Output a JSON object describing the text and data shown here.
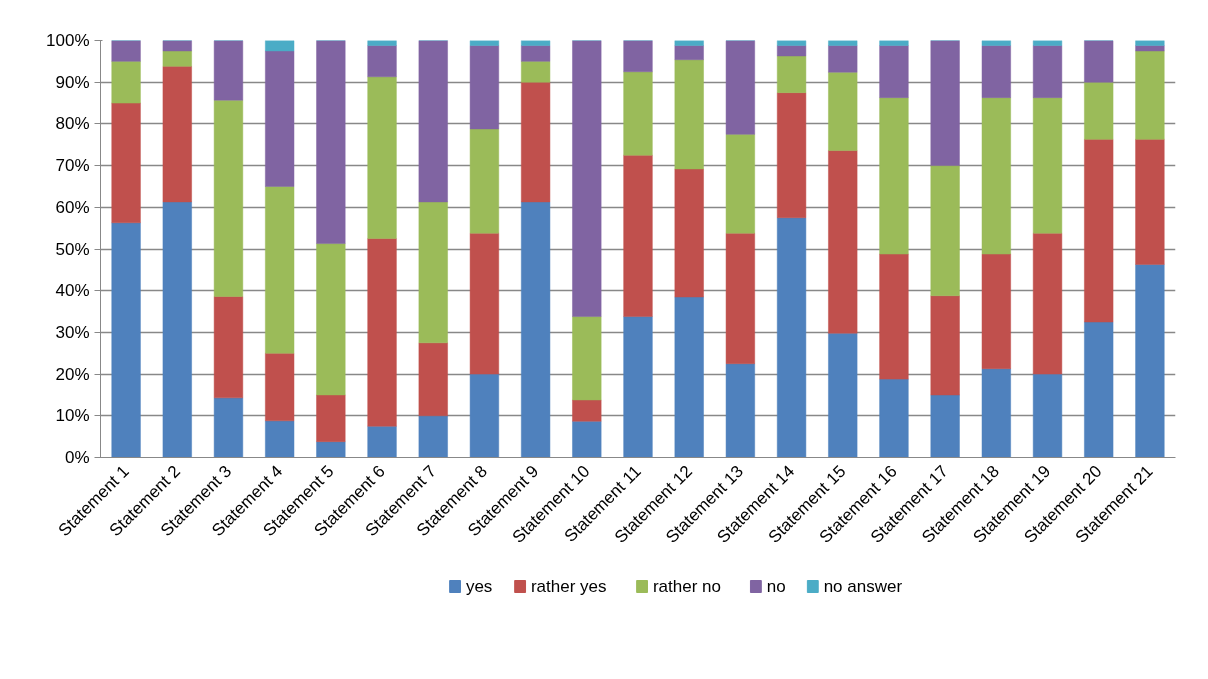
{
  "chart_data": {
    "type": "bar",
    "stacked": true,
    "categories": [
      "Statement 1",
      "Statement 2",
      "Statement 3",
      "Statement 4",
      "Statement 5",
      "Statement 6",
      "Statement 7",
      "Statement 8",
      "Statement 9",
      "Statement 10",
      "Statement 11",
      "Statement 12",
      "Statement 13",
      "Statement 14",
      "Statement 15",
      "Statement 16",
      "Statement 17",
      "Statement 18",
      "Statement 19",
      "Statement 20",
      "Statement 21"
    ],
    "series": [
      {
        "name": "yes",
        "color": "#4f81bd",
        "values": [
          56.3,
          61.3,
          14.3,
          8.8,
          3.8,
          7.5,
          10,
          20,
          61.3,
          8.7,
          33.8,
          38.5,
          22.5,
          57.5,
          29.8,
          18.8,
          15,
          21.3,
          20,
          32.5,
          46.3
        ]
      },
      {
        "name": "rather yes",
        "color": "#c0504d",
        "values": [
          28.7,
          32.5,
          24.3,
          16.2,
          11.2,
          45,
          17.5,
          33.8,
          28.7,
          5.1,
          38.7,
          30.7,
          31.3,
          30,
          43.8,
          30,
          23.8,
          27.5,
          33.8,
          43.8,
          30
        ]
      },
      {
        "name": "rather no",
        "color": "#9bbb59",
        "values": [
          10,
          3.7,
          47.1,
          40,
          36.3,
          38.8,
          33.8,
          25,
          5,
          20,
          20,
          26.2,
          23.7,
          8.8,
          18.8,
          37.5,
          31.2,
          37.5,
          32.5,
          13.7,
          21.2
        ]
      },
      {
        "name": "no",
        "color": "#8064a2",
        "values": [
          5,
          2.5,
          14.3,
          32.5,
          48.7,
          7.5,
          38.7,
          20,
          3.8,
          66.2,
          7.5,
          3.4,
          22.5,
          2.5,
          6.4,
          12.5,
          30,
          12.5,
          12.5,
          10,
          1.3
        ]
      },
      {
        "name": "no answer",
        "color": "#4bacc6",
        "values": [
          0,
          0,
          0,
          2.5,
          0,
          1.2,
          0,
          1.2,
          1.2,
          0,
          0,
          1.2,
          0,
          1.2,
          1.2,
          1.2,
          0,
          1.2,
          1.2,
          0,
          1.2
        ]
      }
    ],
    "ylim": [
      0,
      100
    ],
    "yticks": [
      {
        "value": 0,
        "label": "0%"
      },
      {
        "value": 10,
        "label": "10%"
      },
      {
        "value": 20,
        "label": "20%"
      },
      {
        "value": 30,
        "label": "30%"
      },
      {
        "value": 40,
        "label": "40%"
      },
      {
        "value": 50,
        "label": "50%"
      },
      {
        "value": 60,
        "label": "60%"
      },
      {
        "value": 70,
        "label": "70%"
      },
      {
        "value": 80,
        "label": "80%"
      },
      {
        "value": 90,
        "label": "90%"
      },
      {
        "value": 100,
        "label": "100%"
      }
    ],
    "grid": "y",
    "legend": "bottom"
  }
}
